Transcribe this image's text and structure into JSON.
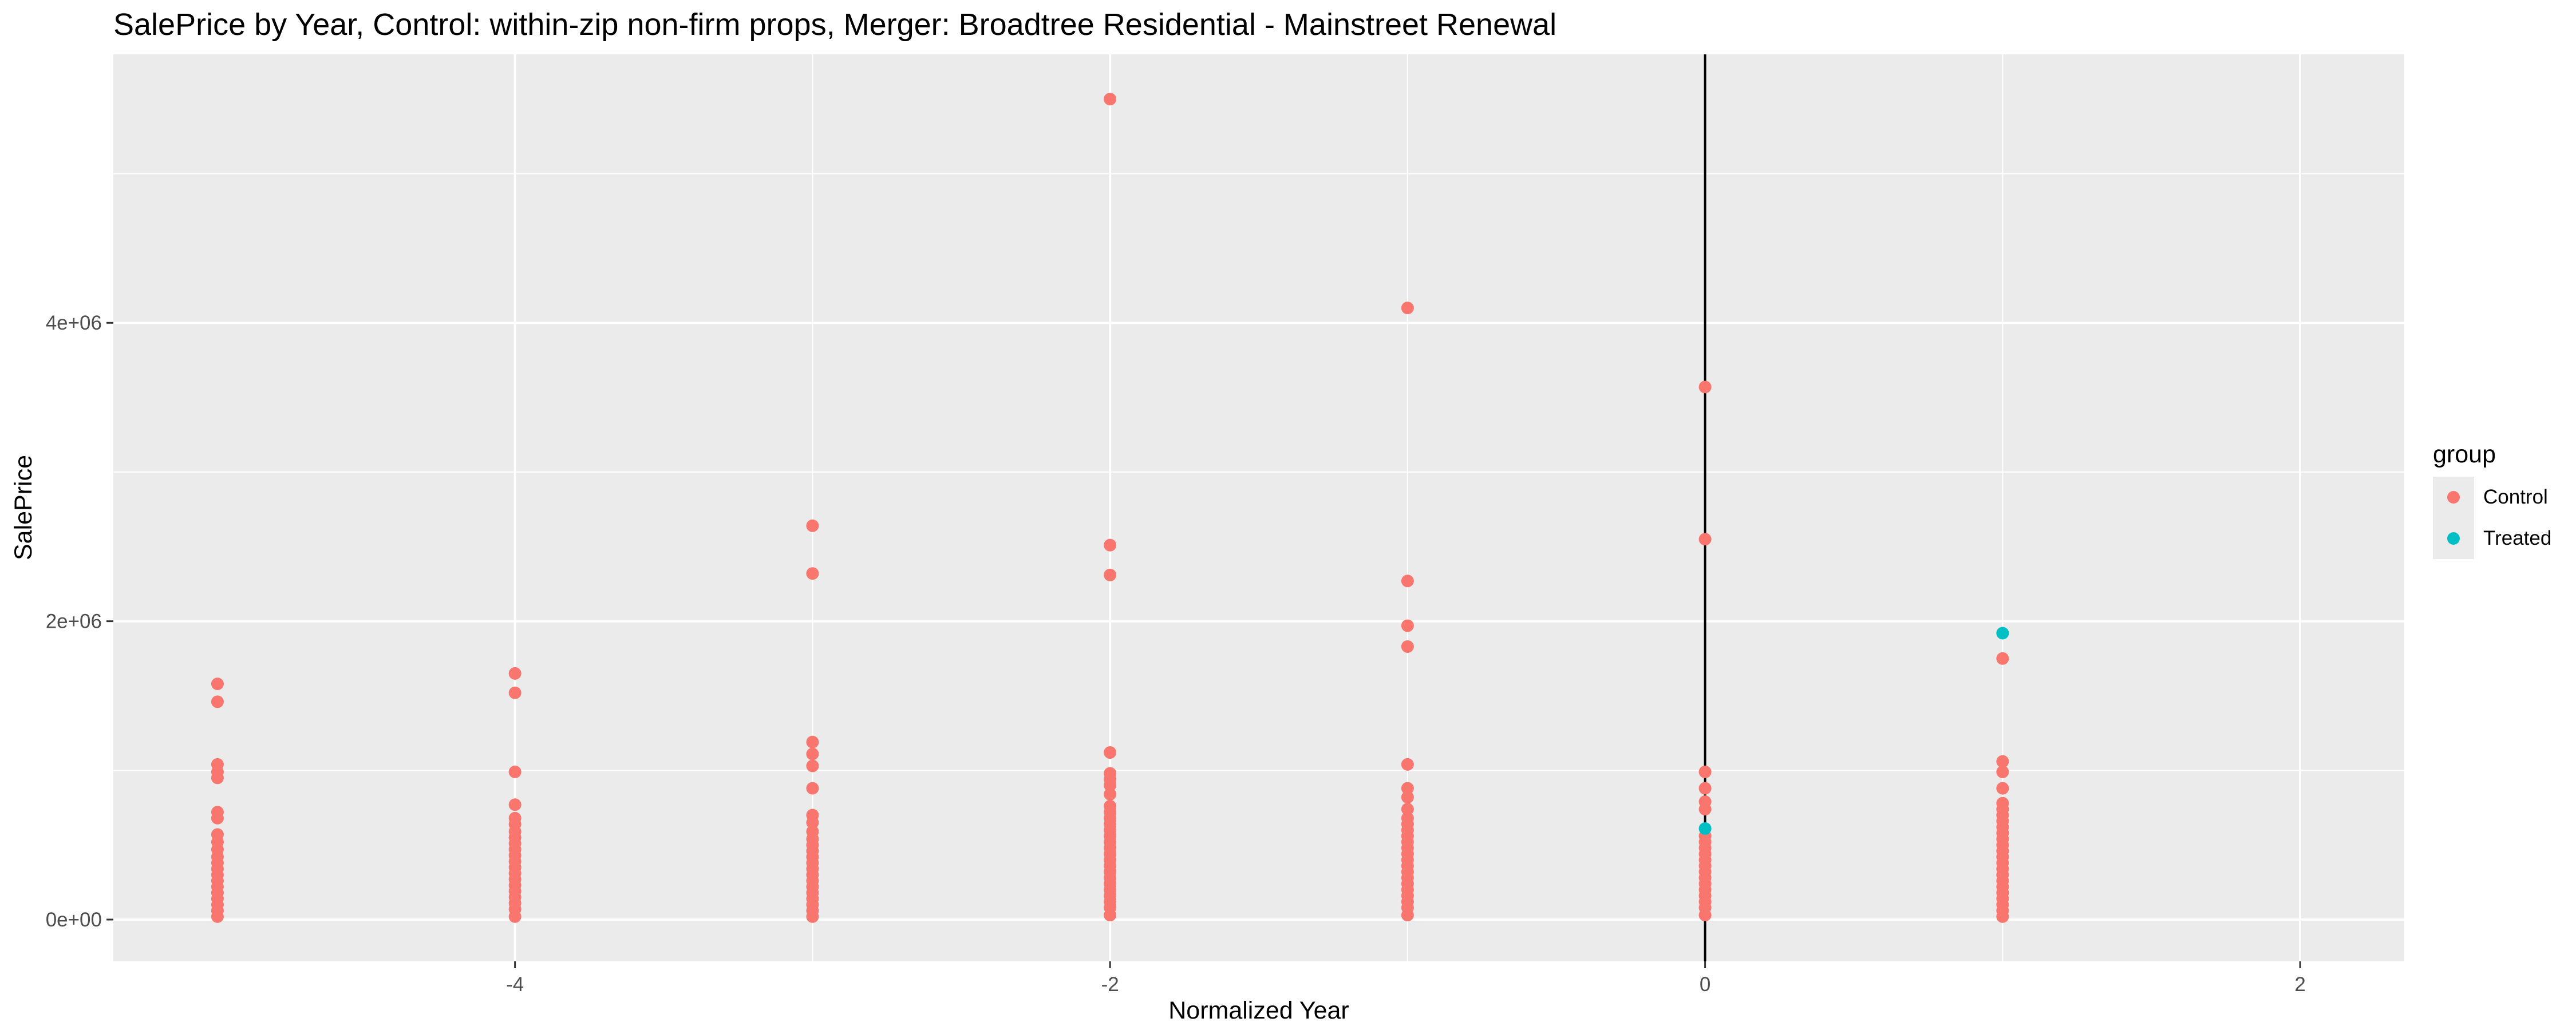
{
  "chart_data": {
    "type": "scatter",
    "title": "SalePrice by Year, Control: within-zip non-firm props, Merger: Broadtree Residential - Mainstreet Renewal",
    "xlabel": "Normalized Year",
    "ylabel": "SalePrice",
    "xlim": [
      -5.35,
      2.35
    ],
    "ylim": [
      -280000,
      5800000
    ],
    "x_ticks": [
      -4,
      -2,
      0,
      2
    ],
    "x_tick_labels": [
      "-4",
      "-2",
      "0",
      "2"
    ],
    "y_ticks": [
      0,
      2000000,
      4000000
    ],
    "y_tick_labels": [
      "0e+00",
      "2e+06",
      "4e+06"
    ],
    "vline_x": 0,
    "grid": true,
    "legend": {
      "title": "group",
      "position": "right"
    },
    "series": [
      {
        "name": "Control",
        "color": "#F8766D",
        "points": [
          [
            -5,
            1580000
          ],
          [
            -5,
            1460000
          ],
          [
            -5,
            1040000
          ],
          [
            -5,
            990000
          ],
          [
            -5,
            950000
          ],
          [
            -5,
            720000
          ],
          [
            -5,
            680000
          ],
          [
            -5,
            570000
          ],
          [
            -5,
            520000
          ],
          [
            -5,
            470000
          ],
          [
            -5,
            420000
          ],
          [
            -5,
            380000
          ],
          [
            -5,
            340000
          ],
          [
            -5,
            300000
          ],
          [
            -5,
            260000
          ],
          [
            -5,
            220000
          ],
          [
            -5,
            180000
          ],
          [
            -5,
            140000
          ],
          [
            -5,
            100000
          ],
          [
            -5,
            60000
          ],
          [
            -5,
            20000
          ],
          [
            -4,
            1650000
          ],
          [
            -4,
            1520000
          ],
          [
            -4,
            990000
          ],
          [
            -4,
            770000
          ],
          [
            -4,
            680000
          ],
          [
            -4,
            640000
          ],
          [
            -4,
            590000
          ],
          [
            -4,
            550000
          ],
          [
            -4,
            510000
          ],
          [
            -4,
            470000
          ],
          [
            -4,
            430000
          ],
          [
            -4,
            390000
          ],
          [
            -4,
            350000
          ],
          [
            -4,
            310000
          ],
          [
            -4,
            270000
          ],
          [
            -4,
            230000
          ],
          [
            -4,
            190000
          ],
          [
            -4,
            150000
          ],
          [
            -4,
            110000
          ],
          [
            -4,
            70000
          ],
          [
            -4,
            20000
          ],
          [
            -3,
            2640000
          ],
          [
            -3,
            2320000
          ],
          [
            -3,
            1190000
          ],
          [
            -3,
            1110000
          ],
          [
            -3,
            1030000
          ],
          [
            -3,
            880000
          ],
          [
            -3,
            700000
          ],
          [
            -3,
            650000
          ],
          [
            -3,
            590000
          ],
          [
            -3,
            540000
          ],
          [
            -3,
            500000
          ],
          [
            -3,
            460000
          ],
          [
            -3,
            420000
          ],
          [
            -3,
            380000
          ],
          [
            -3,
            340000
          ],
          [
            -3,
            300000
          ],
          [
            -3,
            260000
          ],
          [
            -3,
            220000
          ],
          [
            -3,
            180000
          ],
          [
            -3,
            140000
          ],
          [
            -3,
            100000
          ],
          [
            -3,
            60000
          ],
          [
            -3,
            20000
          ],
          [
            -2,
            5500000
          ],
          [
            -2,
            2510000
          ],
          [
            -2,
            2310000
          ],
          [
            -2,
            1120000
          ],
          [
            -2,
            980000
          ],
          [
            -2,
            940000
          ],
          [
            -2,
            900000
          ],
          [
            -2,
            840000
          ],
          [
            -2,
            760000
          ],
          [
            -2,
            720000
          ],
          [
            -2,
            680000
          ],
          [
            -2,
            640000
          ],
          [
            -2,
            600000
          ],
          [
            -2,
            560000
          ],
          [
            -2,
            520000
          ],
          [
            -2,
            480000
          ],
          [
            -2,
            440000
          ],
          [
            -2,
            400000
          ],
          [
            -2,
            360000
          ],
          [
            -2,
            320000
          ],
          [
            -2,
            280000
          ],
          [
            -2,
            240000
          ],
          [
            -2,
            200000
          ],
          [
            -2,
            160000
          ],
          [
            -2,
            120000
          ],
          [
            -2,
            80000
          ],
          [
            -2,
            30000
          ],
          [
            -1,
            4100000
          ],
          [
            -1,
            2270000
          ],
          [
            -1,
            1970000
          ],
          [
            -1,
            1830000
          ],
          [
            -1,
            1040000
          ],
          [
            -1,
            880000
          ],
          [
            -1,
            820000
          ],
          [
            -1,
            740000
          ],
          [
            -1,
            680000
          ],
          [
            -1,
            640000
          ],
          [
            -1,
            600000
          ],
          [
            -1,
            560000
          ],
          [
            -1,
            520000
          ],
          [
            -1,
            480000
          ],
          [
            -1,
            440000
          ],
          [
            -1,
            400000
          ],
          [
            -1,
            360000
          ],
          [
            -1,
            320000
          ],
          [
            -1,
            280000
          ],
          [
            -1,
            240000
          ],
          [
            -1,
            200000
          ],
          [
            -1,
            160000
          ],
          [
            -1,
            120000
          ],
          [
            -1,
            80000
          ],
          [
            -1,
            30000
          ],
          [
            0,
            3570000
          ],
          [
            0,
            2550000
          ],
          [
            0,
            990000
          ],
          [
            0,
            880000
          ],
          [
            0,
            790000
          ],
          [
            0,
            740000
          ],
          [
            0,
            560000
          ],
          [
            0,
            520000
          ],
          [
            0,
            480000
          ],
          [
            0,
            440000
          ],
          [
            0,
            400000
          ],
          [
            0,
            360000
          ],
          [
            0,
            320000
          ],
          [
            0,
            280000
          ],
          [
            0,
            240000
          ],
          [
            0,
            200000
          ],
          [
            0,
            160000
          ],
          [
            0,
            120000
          ],
          [
            0,
            80000
          ],
          [
            0,
            30000
          ],
          [
            1,
            1750000
          ],
          [
            1,
            1060000
          ],
          [
            1,
            990000
          ],
          [
            1,
            880000
          ],
          [
            1,
            780000
          ],
          [
            1,
            740000
          ],
          [
            1,
            700000
          ],
          [
            1,
            660000
          ],
          [
            1,
            620000
          ],
          [
            1,
            580000
          ],
          [
            1,
            540000
          ],
          [
            1,
            500000
          ],
          [
            1,
            460000
          ],
          [
            1,
            420000
          ],
          [
            1,
            380000
          ],
          [
            1,
            340000
          ],
          [
            1,
            300000
          ],
          [
            1,
            260000
          ],
          [
            1,
            220000
          ],
          [
            1,
            180000
          ],
          [
            1,
            140000
          ],
          [
            1,
            100000
          ],
          [
            1,
            60000
          ],
          [
            1,
            20000
          ]
        ]
      },
      {
        "name": "Treated",
        "color": "#00BFC4",
        "points": [
          [
            1,
            1920000
          ],
          [
            0,
            610000
          ]
        ]
      }
    ]
  }
}
